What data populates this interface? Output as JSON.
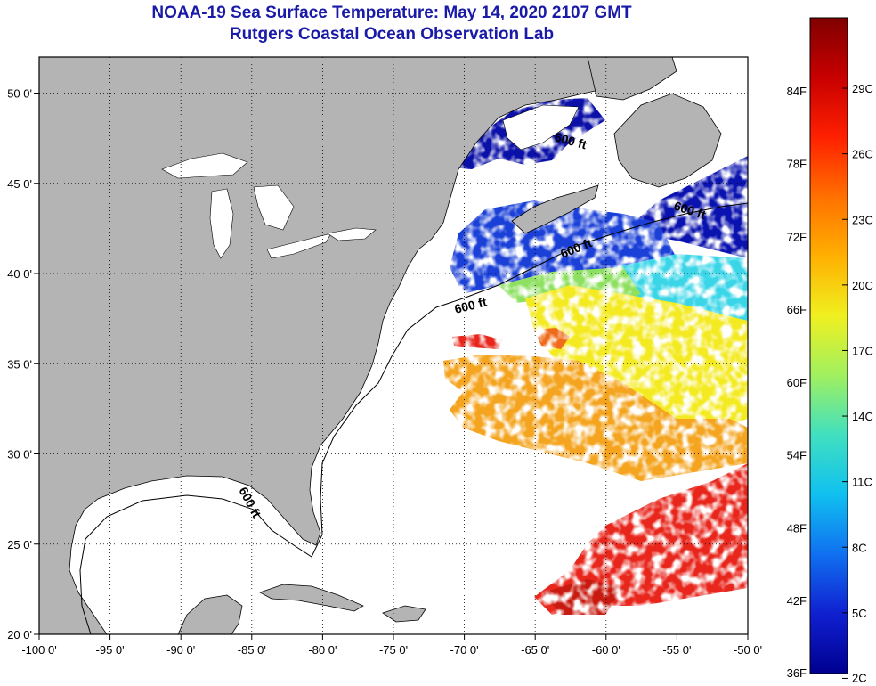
{
  "header": {
    "title": "NOAA-19 Sea Surface Temperature:  May 14, 2020 2107 GMT",
    "subtitle": "Rutgers Coastal Ocean Observation Lab"
  },
  "map": {
    "lon_range": [
      -100,
      -50
    ],
    "lat_range": [
      20,
      52
    ],
    "lon_ticks": [
      "-100 0'",
      "-95 0'",
      "-90 0'",
      "-85 0'",
      "-80 0'",
      "-75 0'",
      "-70 0'",
      "-65 0'",
      "-60 0'",
      "-55 0'",
      "-50 0'"
    ],
    "lat_ticks": [
      "20 0'",
      "25 0'",
      "30 0'",
      "35 0'",
      "40 0'",
      "45 0'",
      "50 0'"
    ],
    "contour_labels": [
      "600 ft",
      "600 ft",
      "600 ft",
      "600 ft",
      "600 ft"
    ],
    "land_color": "#b4b4b4",
    "colors": {
      "warm": "#e8261c",
      "orange": "#f4a41e",
      "yellow": "#f4ea22",
      "cyan": "#3ad6e8",
      "blue": "#1a40d8",
      "deep_blue": "#0a10a8"
    }
  },
  "colorbar": {
    "f_labels": [
      "84F",
      "78F",
      "72F",
      "66F",
      "60F",
      "54F",
      "48F",
      "42F",
      "36F"
    ],
    "c_labels": [
      "29C",
      "26C",
      "23C",
      "20C",
      "17C",
      "14C",
      "11C",
      "8C",
      "5C",
      "2C"
    ],
    "gradient": [
      "#800000",
      "#c80000",
      "#ff2000",
      "#ff7000",
      "#ffb000",
      "#f0f020",
      "#a0f060",
      "#40e0c0",
      "#10c0f0",
      "#1070f0",
      "#1020d0",
      "#000090"
    ]
  }
}
